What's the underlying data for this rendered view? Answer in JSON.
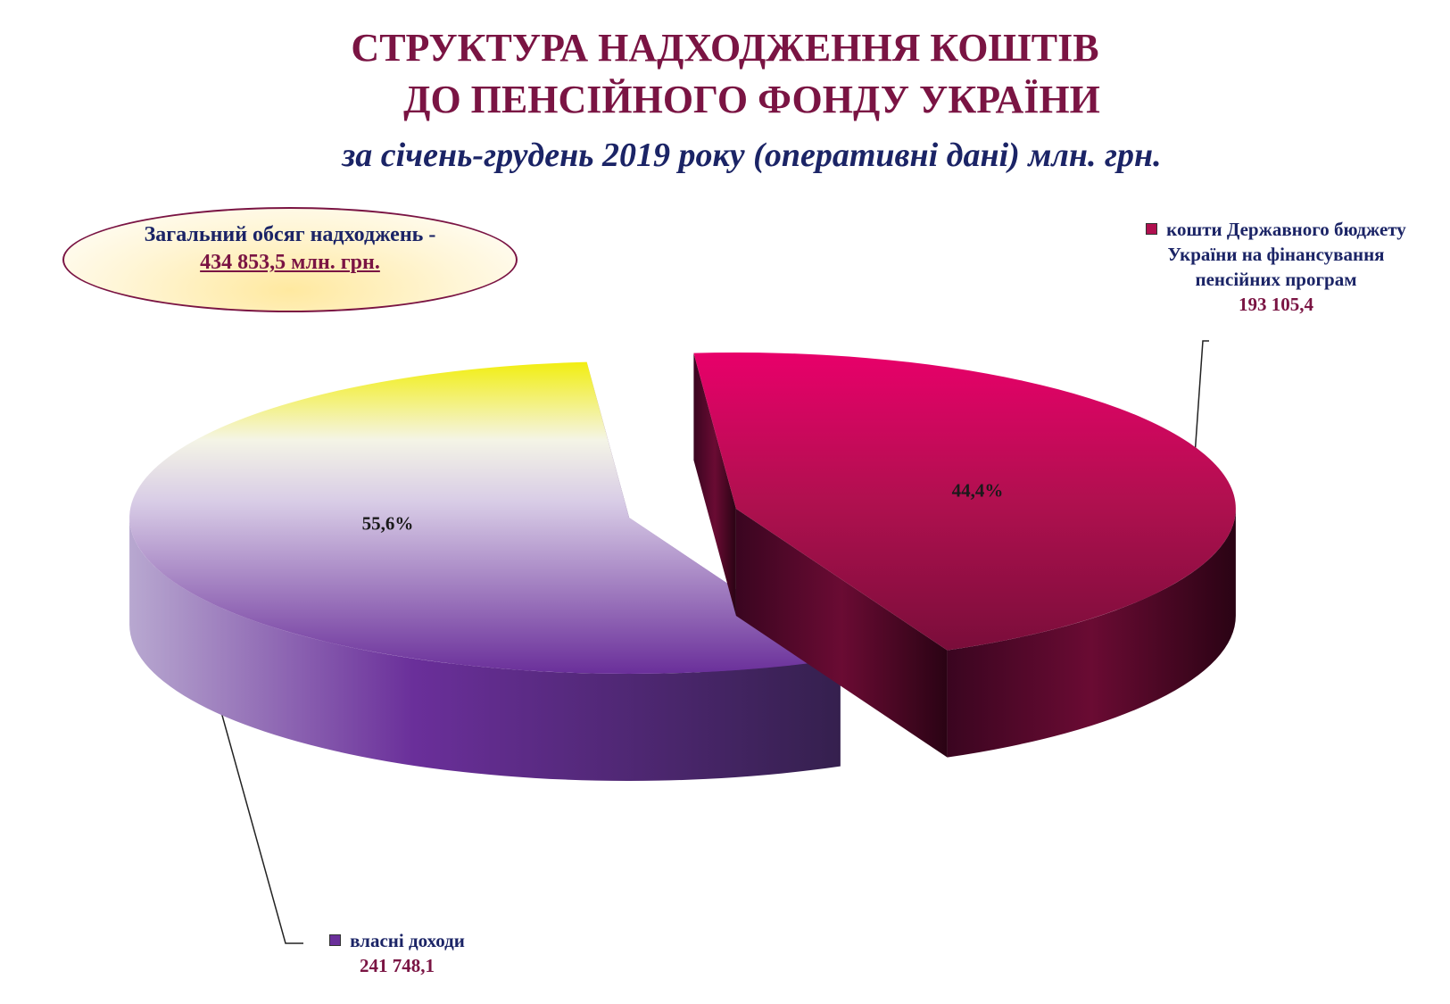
{
  "chart_data": {
    "type": "pie3d",
    "title": [
      "СТРУКТУРА  НАДХОДЖЕННЯ КОШТІВ",
      "ДО ПЕНСІЙНОГО ФОНДУ УКРАЇНИ"
    ],
    "subtitle": "за січень-грудень 2019 року (оперативні дані) млн. грн.",
    "annotation": [
      "Загальний обсяг надходжень -",
      "434 853,5 млн. грн."
    ],
    "categories": [
      "власні доходи",
      "кошти Державного бюджету України на фінансування пенсійних програм"
    ],
    "values": [
      241748.1,
      193105.4
    ],
    "value_labels": [
      "241 748,1",
      "193 105,4"
    ],
    "percents": [
      55.6,
      44.4
    ],
    "percent_labels": [
      "55,6%",
      "44,4%"
    ],
    "colors": [
      "#6a2f9a",
      "#b0104f"
    ]
  }
}
